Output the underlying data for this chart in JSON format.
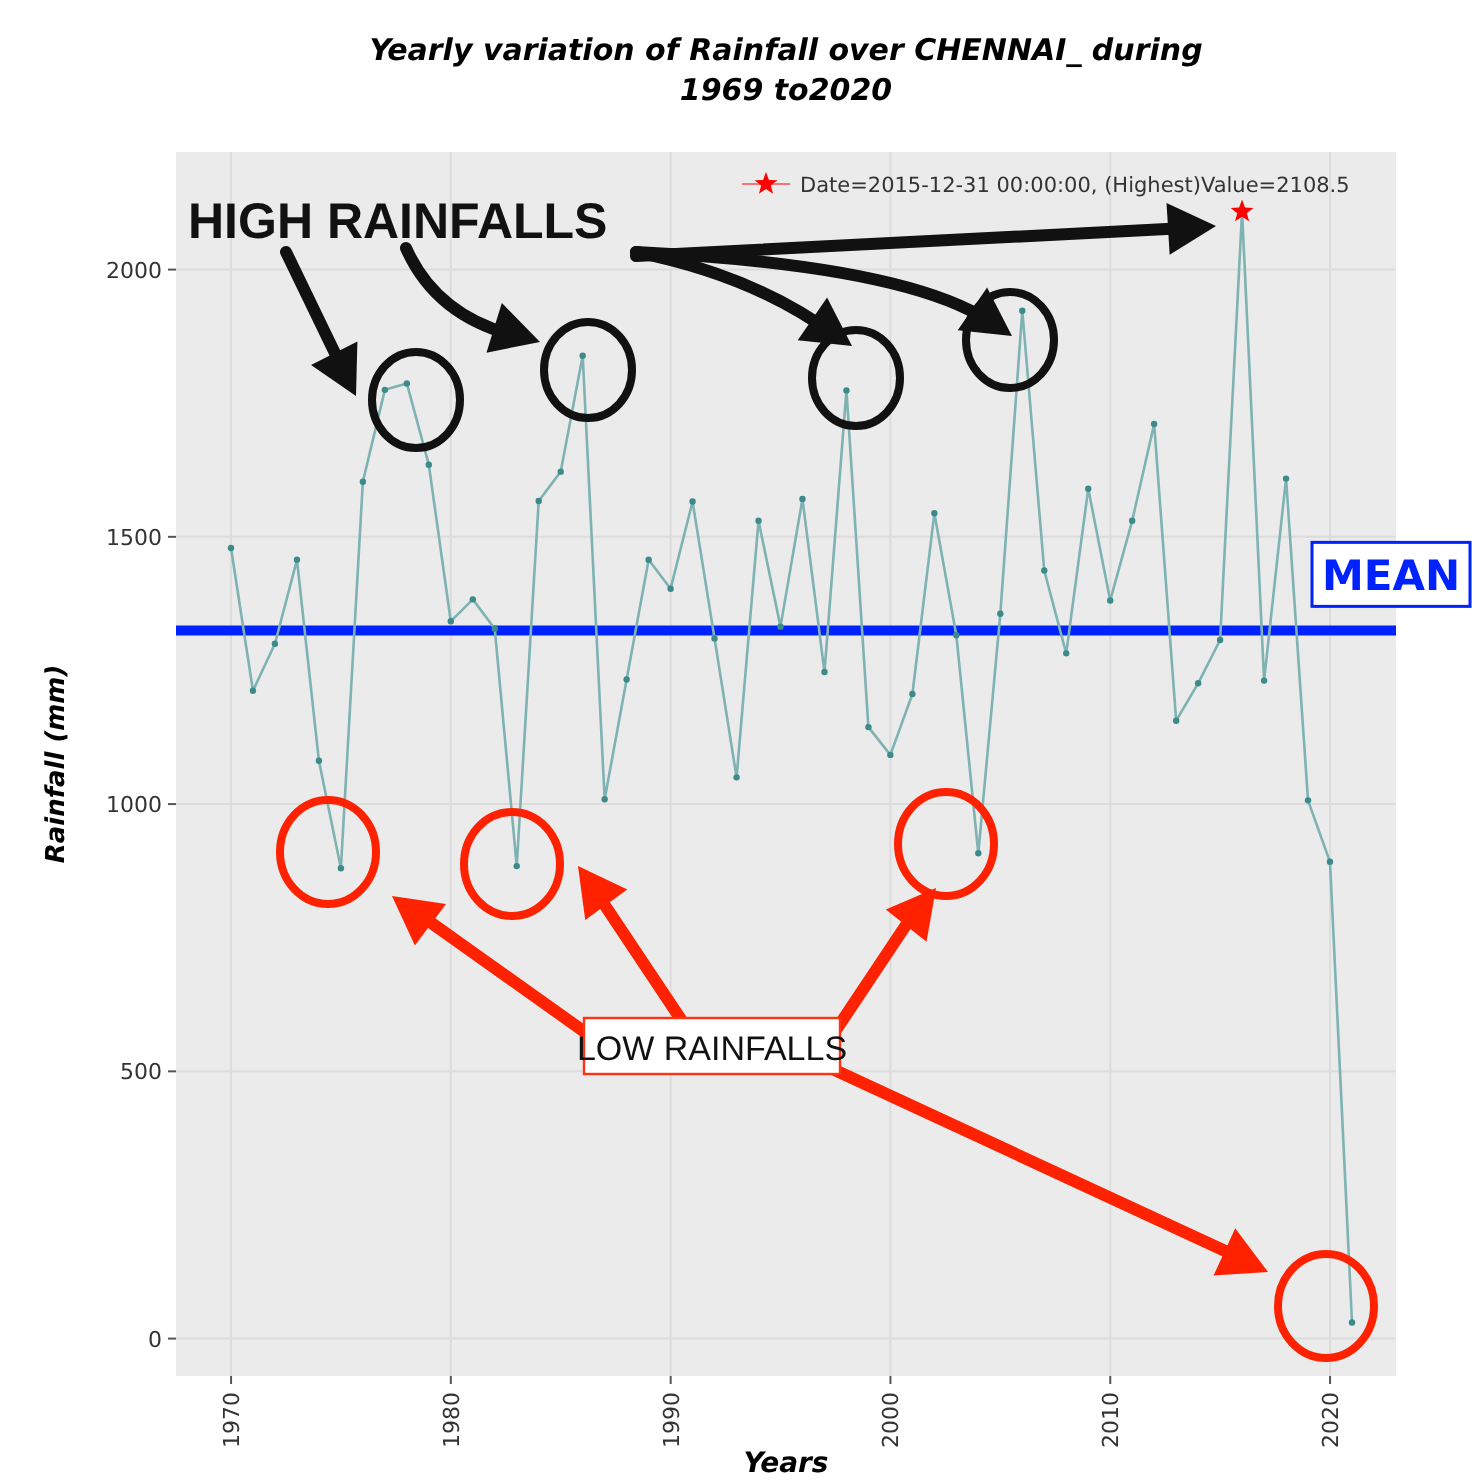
{
  "chart_data": {
    "type": "line",
    "title": "Yearly variation of Rainfall over CHENNAI_ during\n1969 to2020",
    "xlabel": "Years",
    "ylabel": "Rainfall (mm)",
    "x": [
      "1969-12-31",
      "1970-12-31",
      "1971-12-31",
      "1972-12-31",
      "1973-12-31",
      "1974-12-31",
      "1975-12-31",
      "1976-12-31",
      "1977-12-31",
      "1978-12-31",
      "1979-12-31",
      "1980-12-31",
      "1981-12-31",
      "1982-12-31",
      "1983-12-31",
      "1984-12-31",
      "1985-12-31",
      "1986-12-31",
      "1987-12-31",
      "1988-12-31",
      "1989-12-31",
      "1990-12-31",
      "1991-12-31",
      "1992-12-31",
      "1993-12-31",
      "1994-12-31",
      "1995-12-31",
      "1996-12-31",
      "1997-12-31",
      "1998-12-31",
      "1999-12-31",
      "2000-12-31",
      "2001-12-31",
      "2002-12-31",
      "2003-12-31",
      "2004-12-31",
      "2005-12-31",
      "2006-12-31",
      "2007-12-31",
      "2008-12-31",
      "2009-12-31",
      "2010-12-31",
      "2011-12-31",
      "2012-12-31",
      "2013-12-31",
      "2014-12-31",
      "2015-12-31",
      "2016-12-31",
      "2017-12-31",
      "2018-12-31",
      "2019-12-31",
      "2020-12-31"
    ],
    "series": [
      {
        "color": "#7fb2b2",
        "marker": "circle",
        "values": [
          1479,
          1212,
          1300,
          1457,
          1081,
          880,
          1603,
          1775,
          1787,
          1635,
          1342,
          1383,
          1328,
          884,
          1567,
          1622,
          1839,
          1009,
          1233,
          1457,
          1403,
          1566,
          1310,
          1050,
          1530,
          1332,
          1571,
          1247,
          1774,
          1144,
          1092,
          1206,
          1544,
          1316,
          908,
          1356,
          1923,
          1437,
          1282,
          1590,
          1381,
          1530,
          1711,
          1156,
          1226,
          1307,
          2108.5,
          1231,
          1609,
          1007,
          892,
          30
        ]
      },
      {
        "type": "scatter",
        "name": "Date=2015-12-31 00:00:00, (Highest)Value=2108.5",
        "color": "#ff0000",
        "marker": "star",
        "x": [
          "2015-12-31"
        ],
        "values": [
          2108.5
        ]
      }
    ],
    "xlim": [
      "1967-07",
      "2023-01"
    ],
    "xticks": [
      "1970",
      "1980",
      "1990",
      "2000",
      "2010",
      "2020"
    ],
    "ylim": [
      -70,
      2220
    ],
    "yticks": [
      0,
      500,
      1000,
      1500,
      2000
    ],
    "grid": true,
    "legend": "top right",
    "ref_lines": [
      {
        "axis": "y",
        "value": 1325,
        "label": "MEAN",
        "color": "#0022ff"
      }
    ],
    "annotations": [
      "HIGH RAINFALLS",
      "LOW RAINFALLS"
    ]
  }
}
